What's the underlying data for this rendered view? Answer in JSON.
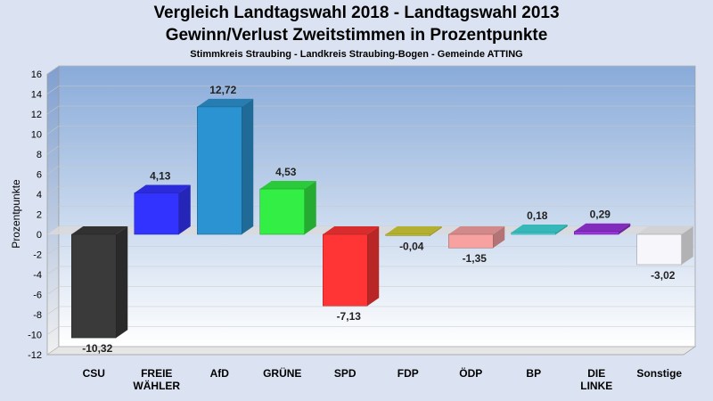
{
  "header": {
    "title": "Vergleich Landtagswahl 2018 - Landtagswahl 2013",
    "subtitle": "Gewinn/Verlust Zweitstimmen in Prozentpunkte",
    "region": "Stimmkreis Straubing - Landkreis Straubing-Bogen - Gemeinde ATTING"
  },
  "chart_data": {
    "type": "bar",
    "title": "Vergleich Landtagswahl 2018 - Landtagswahl 2013",
    "subtitle": "Gewinn/Verlust Zweitstimmen in Prozentpunkte",
    "ylabel": "Prozentpunkte",
    "xlabel": "",
    "ylim": [
      -12,
      16
    ],
    "yticks": [
      "16",
      "14",
      "12",
      "10",
      "8",
      "6",
      "4",
      "2",
      "0",
      "-2",
      "-4",
      "-6",
      "-8",
      "-10",
      "-12"
    ],
    "grid": true,
    "categories": [
      [
        "CSU"
      ],
      [
        "FREIE",
        "WÄHLER"
      ],
      [
        "AfD"
      ],
      [
        "GRÜNE"
      ],
      [
        "SPD"
      ],
      [
        "FDP"
      ],
      [
        "ÖDP"
      ],
      [
        "BP"
      ],
      [
        "DIE",
        "LINKE"
      ],
      [
        "Sonstige"
      ]
    ],
    "values": [
      -10.32,
      4.13,
      12.72,
      4.53,
      -7.13,
      -0.04,
      -1.35,
      0.18,
      0.29,
      -3.02
    ],
    "value_labels": [
      "-10,32",
      "4,13",
      "12,72",
      "4,53",
      "-7,13",
      "-0,04",
      "-1,35",
      "0,18",
      "0,29",
      "-3,02"
    ],
    "colors": [
      "#3a3a3a",
      "#3333ff",
      "#2b93d1",
      "#33ee44",
      "#ff3535",
      "#d2cf3a",
      "#f7a1a1",
      "#3fd7d9",
      "#9933dd",
      "#f7f7fb"
    ]
  }
}
